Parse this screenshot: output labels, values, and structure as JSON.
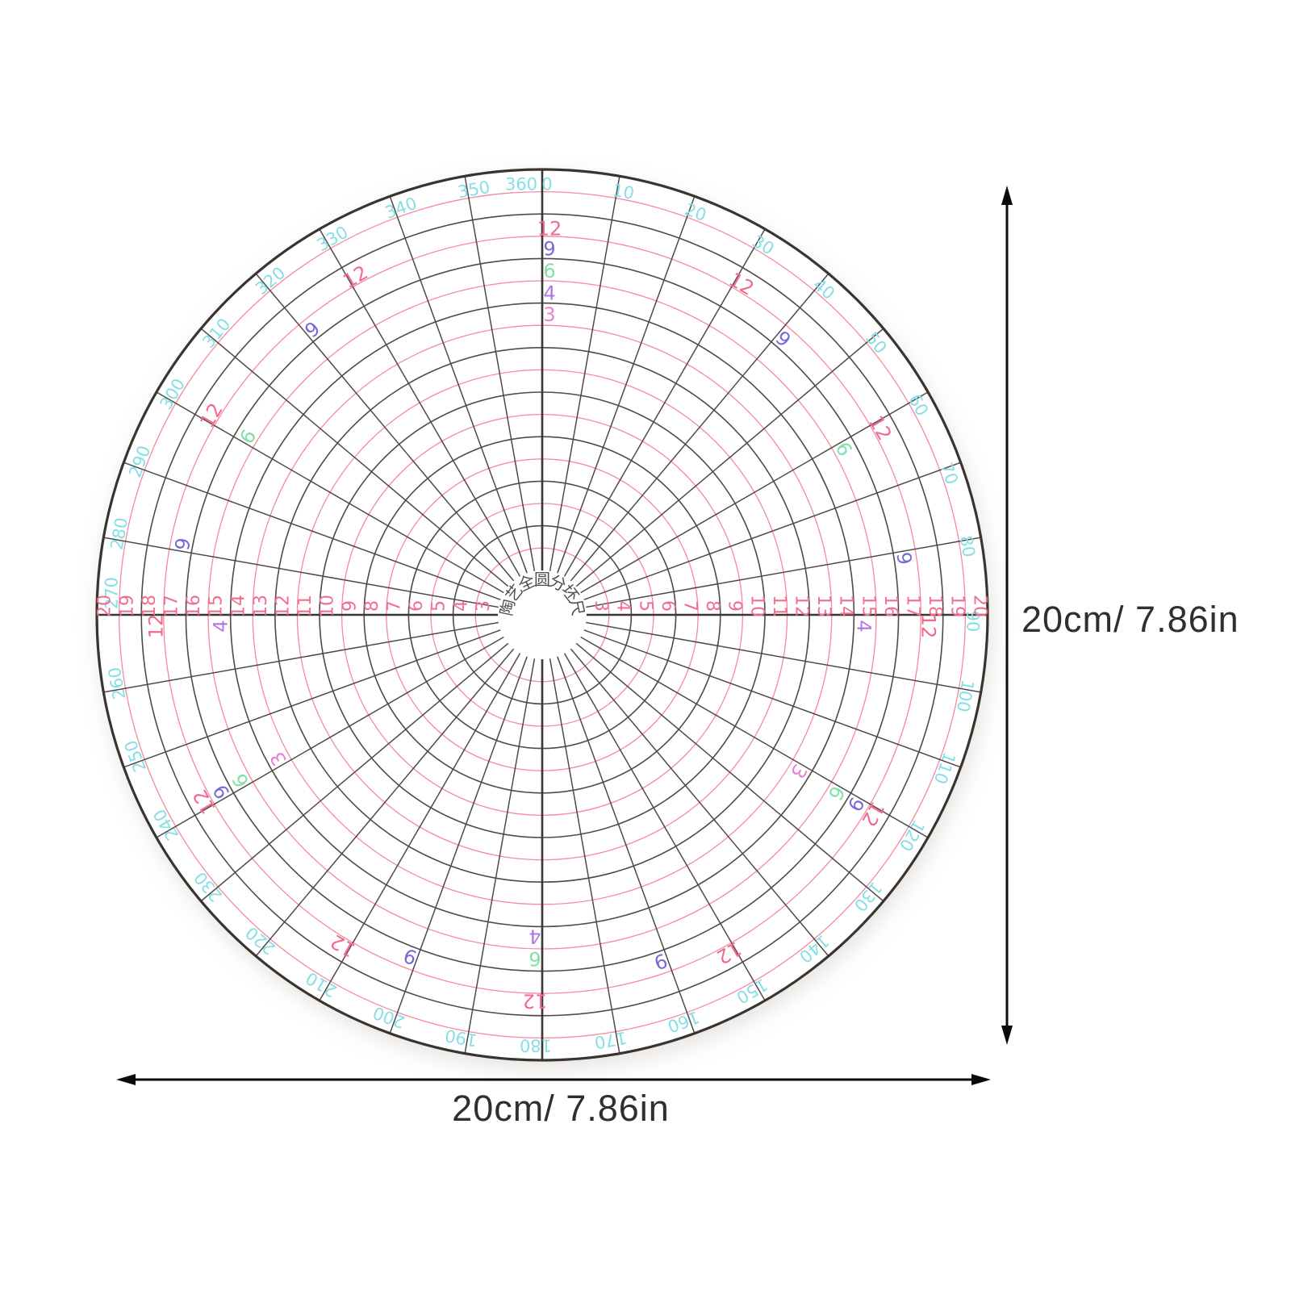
{
  "figure": {
    "kind": "pottery-circle-divider-disc",
    "center_title": "陶艺全圆分坯尺",
    "degree_labels": [
      "0",
      "10",
      "20",
      "30",
      "40",
      "50",
      "60",
      "70",
      "80",
      "90",
      "100",
      "110",
      "120",
      "130",
      "140",
      "150",
      "160",
      "170",
      "180",
      "190",
      "200",
      "210",
      "220",
      "230",
      "240",
      "250",
      "260",
      "270",
      "280",
      "290",
      "300",
      "310",
      "320",
      "330",
      "340",
      "350",
      "360"
    ],
    "ring_numbers": [
      3,
      4,
      5,
      6,
      7,
      8,
      9,
      10,
      11,
      12,
      13,
      14,
      15,
      16,
      17,
      18,
      19,
      20
    ],
    "ring_number_sides": [
      "left",
      "right"
    ],
    "division_series": [
      {
        "label": "12",
        "ring": 17.35,
        "angles": [
          0,
          30,
          60,
          90,
          120,
          150,
          180,
          210,
          240,
          270,
          300,
          330
        ]
      },
      {
        "label": "9",
        "ring": 16.45,
        "angles": [
          0,
          40,
          80,
          120,
          160,
          200,
          240,
          280,
          320
        ]
      },
      {
        "label": "6",
        "ring": 15.45,
        "angles": [
          0,
          60,
          120,
          180,
          240,
          300
        ]
      },
      {
        "label": "4",
        "ring": 14.45,
        "angles": [
          0,
          90,
          180,
          270
        ]
      },
      {
        "label": "3",
        "ring": 13.5,
        "angles": [
          0,
          120,
          240
        ]
      }
    ],
    "colors": {
      "degree_label": "#85dfe6",
      "ring_number": "#f06e90",
      "pink_ring": "#f5899f",
      "dark_ring": "#4f4a48",
      "radial_line": "#4f4a48",
      "main_axis": "#3c3734",
      "outer_edge": "#3a332e",
      "series_12": "#ee6a8e",
      "series_9": "#7569da",
      "series_6": "#82e0a6",
      "series_4": "#b077e4",
      "series_3": "#e980d5",
      "center_title": "#4c4c52",
      "dimension_arrow": "#0a0a0a",
      "dimension_text": "#2f2f2f"
    }
  },
  "dimensions": {
    "width_label": "20cm/ 7.86in",
    "height_label": "20cm/ 7.86in"
  }
}
